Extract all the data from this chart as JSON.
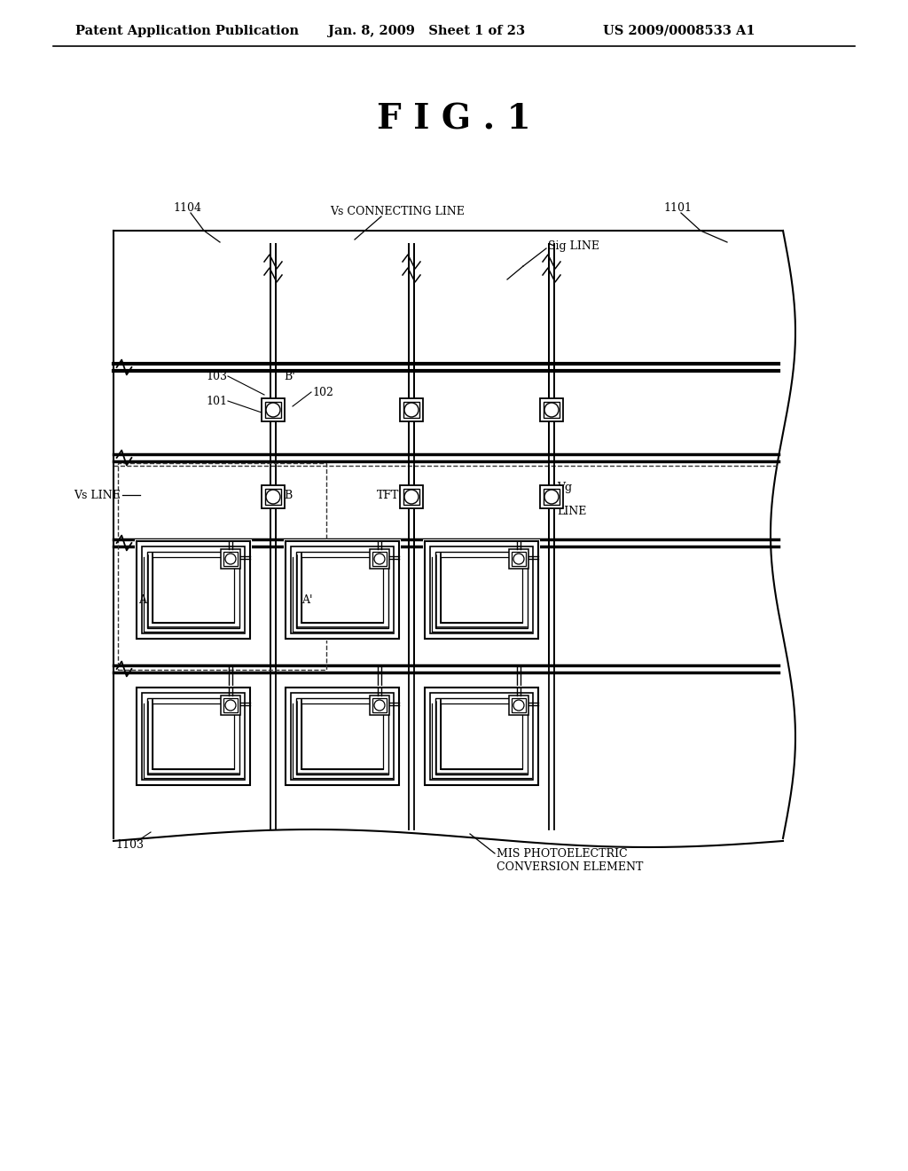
{
  "bg_color": "#ffffff",
  "header_left": "Patent Application Publication",
  "header_mid": "Jan. 8, 2009   Sheet 1 of 23",
  "header_right": "US 2009/0008533 A1",
  "fig_label": "F I G . 1",
  "label_1101": "1101",
  "label_1103": "1103",
  "label_1104": "1104",
  "label_vs_conn": "Vs CONNECTING LINE",
  "label_sig": "Sig LINE",
  "label_vs_line": "Vs LINE",
  "label_tft": "TFT",
  "label_103": "103",
  "label_102": "102",
  "label_101": "101",
  "label_A": "A",
  "label_Ap": "A'",
  "label_B": "B",
  "label_Bp": "B'",
  "label_mis": "MIS PHOTOELECTRIC\nCONVERSION ELEMENT",
  "label_vg": "Vg",
  "label_line": "LINE",
  "text_color": "#000000",
  "line_color": "#000000"
}
